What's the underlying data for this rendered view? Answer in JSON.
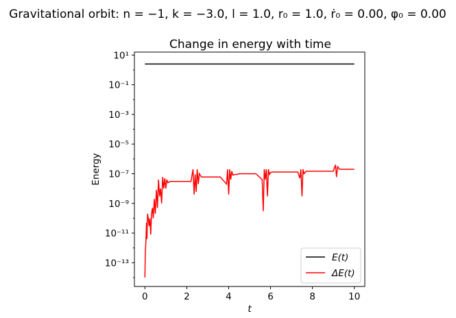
{
  "figure": {
    "suptitle": "Gravitational orbit:   n = −1,  k = −3.0,  l = 1.0,  r₀ = 1.0,  ṙ₀ = 0.00,  φ₀ = 0.00"
  },
  "chart_data": {
    "type": "line",
    "title": "Change in energy with time",
    "xlabel": "t",
    "ylabel": "Energy",
    "xlim": [
      -0.5,
      10.5
    ],
    "ylim_log10": [
      -14.6,
      1.2
    ],
    "yscale": "log",
    "grid": false,
    "legend_position": "lower right",
    "x_ticks": [
      0,
      2,
      4,
      6,
      8,
      10
    ],
    "x_tick_labels": [
      "0",
      "2",
      "4",
      "6",
      "8",
      "10"
    ],
    "y_ticks_log10": [
      1,
      -1,
      -3,
      -5,
      -7,
      -9,
      -11,
      -13
    ],
    "y_tick_labels": [
      "10¹",
      "10⁻¹",
      "10⁻³",
      "10⁻⁵",
      "10⁻⁷",
      "10⁻⁹",
      "10⁻¹¹",
      "10⁻¹³"
    ],
    "series": [
      {
        "name": "E(t)",
        "color": "#000000",
        "x": [
          0,
          10
        ],
        "y": [
          2.5,
          2.5
        ]
      },
      {
        "name": "ΔE(t)",
        "color": "#ff0000",
        "x": [
          0.0,
          0.02,
          0.05,
          0.08,
          0.1,
          0.13,
          0.16,
          0.2,
          0.24,
          0.28,
          0.32,
          0.36,
          0.4,
          0.45,
          0.5,
          0.55,
          0.6,
          0.65,
          0.7,
          0.75,
          0.8,
          0.85,
          0.9,
          0.95,
          1.0,
          1.05,
          1.1,
          1.2,
          1.4,
          1.6,
          1.8,
          2.0,
          2.2,
          2.3,
          2.35,
          2.4,
          2.45,
          2.5,
          2.55,
          2.6,
          2.7,
          2.8,
          3.0,
          3.3,
          3.6,
          3.9,
          3.95,
          4.0,
          4.05,
          4.1,
          4.15,
          4.2,
          4.3,
          4.4,
          4.5,
          4.6,
          4.8,
          5.0,
          5.3,
          5.6,
          5.65,
          5.7,
          5.75,
          5.8,
          5.85,
          5.9,
          5.95,
          6.0,
          6.1,
          6.3,
          6.6,
          7.0,
          7.3,
          7.4,
          7.45,
          7.5,
          7.55,
          7.6,
          7.7,
          7.8,
          8.0,
          8.5,
          9.0,
          9.1,
          9.15,
          9.2,
          9.3,
          9.4,
          9.6,
          9.8,
          10.0
        ],
        "y": [
          1e-14,
          5e-13,
          3e-12,
          5e-11,
          4e-12,
          2e-10,
          1e-10,
          3e-11,
          1e-10,
          8e-12,
          2e-10,
          5e-10,
          1e-10,
          2e-09,
          2e-10,
          8e-09,
          5e-10,
          4e-08,
          3e-09,
          1e-08,
          1e-09,
          6e-08,
          1e-08,
          5e-08,
          1e-08,
          4e-08,
          2.5e-08,
          3e-08,
          3e-08,
          3e-08,
          3e-08,
          3e-08,
          3e-08,
          2e-07,
          4e-09,
          9e-08,
          6e-09,
          2e-07,
          2e-08,
          1e-07,
          6e-08,
          6e-08,
          6e-08,
          6e-08,
          6e-08,
          2e-08,
          2e-07,
          4e-09,
          2e-07,
          4e-08,
          1.5e-07,
          8e-08,
          9e-08,
          9e-08,
          1e-07,
          1e-07,
          1e-07,
          1e-07,
          1e-07,
          4e-08,
          3e-10,
          2e-07,
          4e-08,
          2e-07,
          3e-09,
          2e-07,
          9e-08,
          1.2e-07,
          1.3e-07,
          1.3e-07,
          1.3e-07,
          1.3e-07,
          1.3e-07,
          5e-08,
          2e-07,
          3e-09,
          2e-07,
          1e-07,
          1.5e-07,
          1.5e-07,
          1.5e-07,
          1.5e-07,
          1.5e-07,
          4e-07,
          6e-08,
          3e-07,
          2e-07,
          2e-07,
          2e-07,
          2e-07,
          2e-07
        ]
      }
    ]
  }
}
